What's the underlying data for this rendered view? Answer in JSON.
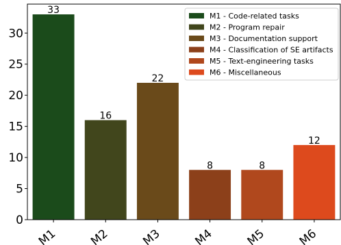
{
  "chart_data": {
    "type": "bar",
    "categories": [
      "M1",
      "M2",
      "M3",
      "M4",
      "M5",
      "M6"
    ],
    "values": [
      33,
      16,
      22,
      8,
      8,
      12
    ],
    "data_labels": [
      "33",
      "16",
      "22",
      "8",
      "8",
      "12"
    ],
    "colors": [
      "#1b4b1b",
      "#41461c",
      "#6a4a1a",
      "#8c401a",
      "#b0481d",
      "#dd4a1d"
    ],
    "legend": [
      "M1 - Code-related tasks",
      "M2 - Program repair",
      "M3 - Documentation support",
      "M4 - Classification of SE artifacts",
      "M5 - Text-engineering tasks",
      "M6 - Miscellaneous"
    ],
    "legend_position": "top-right",
    "yticks": [
      0,
      5,
      10,
      15,
      20,
      25,
      30
    ],
    "ylim": [
      0,
      34.65
    ],
    "xtick_rotation": -40,
    "grid": false,
    "title": "",
    "xlabel": "",
    "ylabel": ""
  }
}
